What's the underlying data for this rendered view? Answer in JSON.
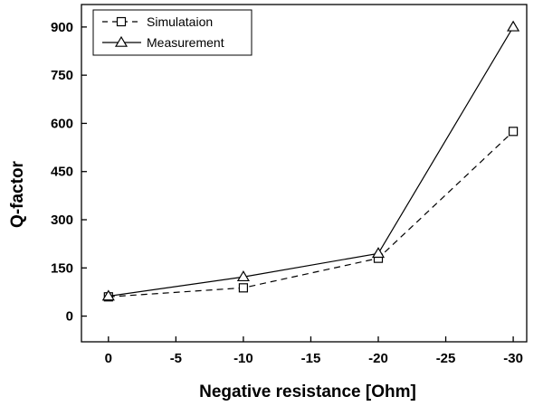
{
  "chart_data": {
    "type": "line",
    "title": "",
    "xlabel": "Negative resistance [Ohm]",
    "ylabel": "Q-factor",
    "x": [
      0,
      -10,
      -20,
      -30
    ],
    "xlim": [
      2,
      -31
    ],
    "ylim": [
      -80,
      970
    ],
    "xticks": [
      0,
      -5,
      -10,
      -15,
      -20,
      -25,
      -30
    ],
    "xtick_labels": [
      "0",
      "-5",
      "-10",
      "-15",
      "-20",
      "-25",
      "-30"
    ],
    "yticks": [
      0,
      150,
      300,
      450,
      600,
      750,
      900
    ],
    "ytick_labels": [
      "0",
      "150",
      "300",
      "450",
      "600",
      "750",
      "900"
    ],
    "grid": false,
    "legend_position": "top-left",
    "series": [
      {
        "name": "Simulataion",
        "values": [
          60,
          88,
          180,
          575
        ],
        "marker": "square",
        "line_style": "dashed",
        "color": "#000000"
      },
      {
        "name": "Measurement",
        "values": [
          62,
          122,
          195,
          900
        ],
        "marker": "triangle",
        "line_style": "solid",
        "color": "#000000"
      }
    ]
  }
}
